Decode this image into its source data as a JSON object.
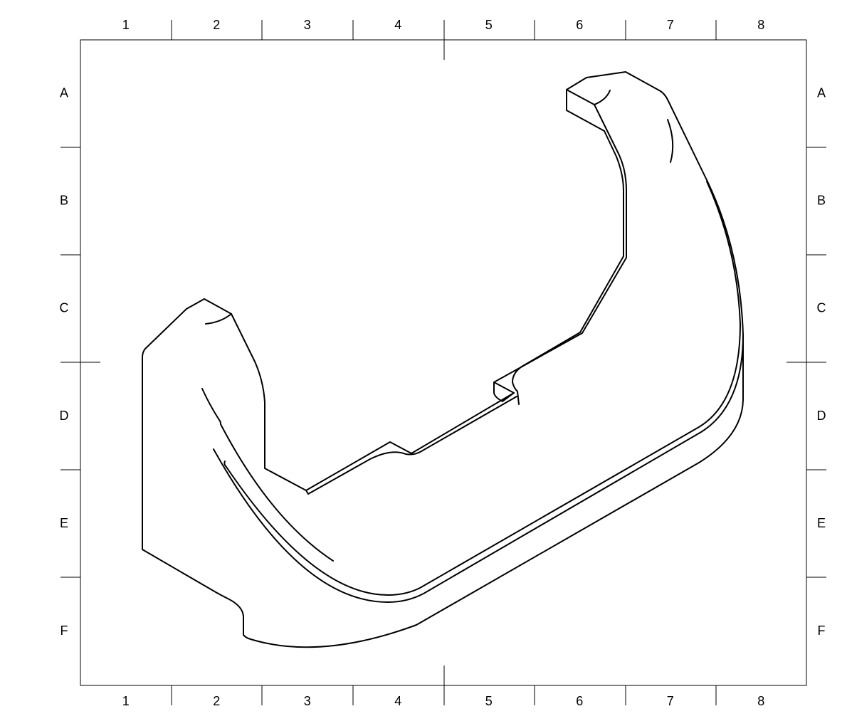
{
  "drawing": {
    "columns": [
      "1",
      "2",
      "3",
      "4",
      "5",
      "6",
      "7",
      "8"
    ],
    "rows": [
      "A",
      "B",
      "C",
      "D",
      "E",
      "F"
    ],
    "line_color": "#000000",
    "background": "#ffffff"
  }
}
